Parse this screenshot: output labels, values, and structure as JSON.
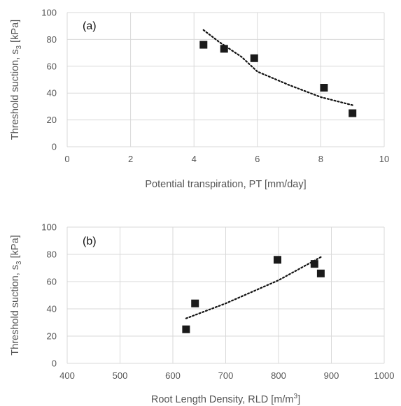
{
  "chart_data": [
    {
      "type": "scatter",
      "panel_label": "(a)",
      "xlabel": "Potential transpiration, PT [mm/day]",
      "ylabel": {
        "prefix": "Threshold suction, s",
        "subscript": "3",
        "suffix": " [kPa]"
      },
      "xlim": [
        0,
        10
      ],
      "ylim": [
        0,
        100
      ],
      "xticks": [
        0,
        2,
        4,
        6,
        8,
        10
      ],
      "yticks": [
        0,
        20,
        40,
        60,
        80,
        100
      ],
      "grid": true,
      "legend": "none",
      "marker_color": "#1a1a1a",
      "points": [
        {
          "x": 4.3,
          "y": 76
        },
        {
          "x": 4.95,
          "y": 73
        },
        {
          "x": 5.9,
          "y": 66
        },
        {
          "x": 8.1,
          "y": 44
        },
        {
          "x": 9.0,
          "y": 25
        }
      ],
      "trendline": {
        "style": "dotted",
        "points": [
          {
            "x": 4.3,
            "y": 87
          },
          {
            "x": 4.8,
            "y": 78
          },
          {
            "x": 5.5,
            "y": 67
          },
          {
            "x": 6.0,
            "y": 56
          },
          {
            "x": 7.0,
            "y": 46
          },
          {
            "x": 8.0,
            "y": 37
          },
          {
            "x": 9.0,
            "y": 31
          }
        ]
      }
    },
    {
      "type": "scatter",
      "panel_label": "(b)",
      "xlabel": {
        "prefix": "Root Length Density, RLD [m/m",
        "superscript": "3",
        "suffix": "]"
      },
      "ylabel": {
        "prefix": "Threshold suction, s",
        "subscript": "3",
        "suffix": " [kPa]"
      },
      "xlim": [
        400,
        1000
      ],
      "ylim": [
        0,
        100
      ],
      "xticks": [
        400,
        500,
        600,
        700,
        800,
        900,
        1000
      ],
      "yticks": [
        0,
        20,
        40,
        60,
        80,
        100
      ],
      "grid": true,
      "legend": "none",
      "marker_color": "#1a1a1a",
      "points": [
        {
          "x": 625,
          "y": 25
        },
        {
          "x": 642,
          "y": 44
        },
        {
          "x": 798,
          "y": 76
        },
        {
          "x": 868,
          "y": 73
        },
        {
          "x": 880,
          "y": 66
        }
      ],
      "trendline": {
        "style": "dotted",
        "points": [
          {
            "x": 625,
            "y": 33
          },
          {
            "x": 700,
            "y": 44
          },
          {
            "x": 800,
            "y": 61
          },
          {
            "x": 880,
            "y": 78
          }
        ]
      }
    }
  ]
}
